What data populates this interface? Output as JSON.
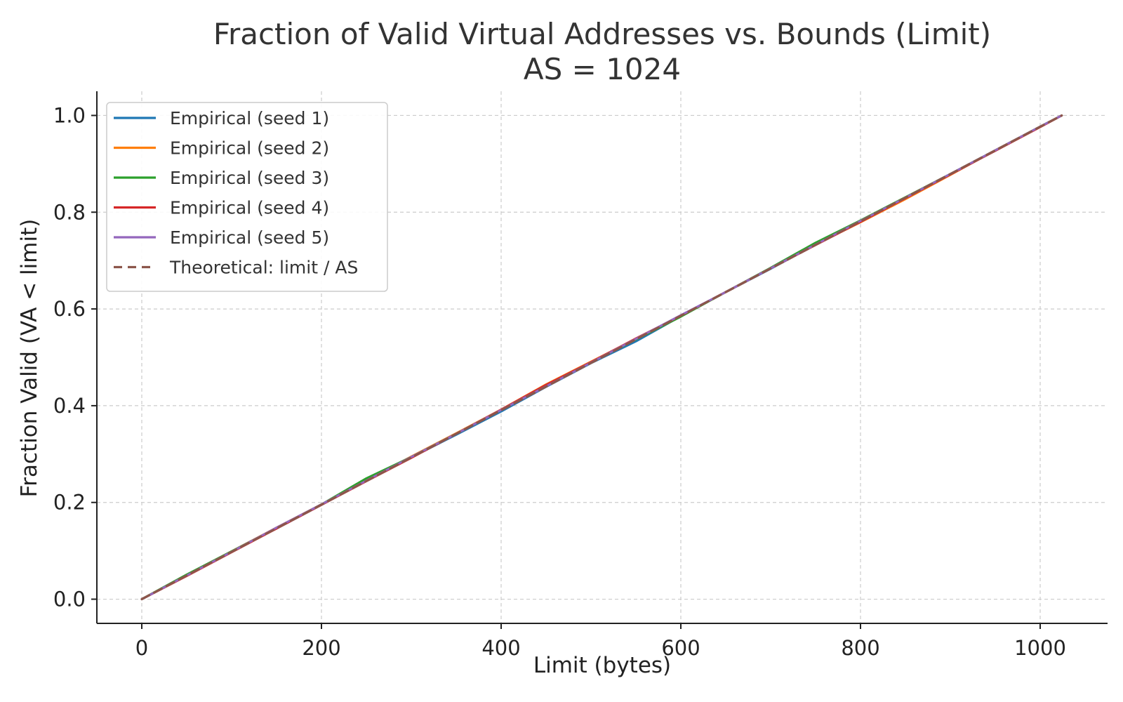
{
  "chart_data": {
    "type": "line",
    "title": "Fraction of Valid Virtual Addresses vs. Bounds (Limit)",
    "subtitle": "AS = 1024",
    "xlabel": "Limit (bytes)",
    "ylabel": "Fraction Valid (VA < limit)",
    "xlim": [
      -50,
      1075
    ],
    "ylim": [
      -0.05,
      1.05
    ],
    "xticks": [
      0,
      200,
      400,
      600,
      800,
      1000
    ],
    "xtick_labels": [
      "0",
      "200",
      "400",
      "600",
      "800",
      "1000"
    ],
    "yticks": [
      0.0,
      0.2,
      0.4,
      0.6,
      0.8,
      1.0
    ],
    "ytick_labels": [
      "0.0",
      "0.2",
      "0.4",
      "0.6",
      "0.8",
      "1.0"
    ],
    "grid": true,
    "legend_position": "top-left",
    "series": [
      {
        "name": "Empirical (seed 1)",
        "color": "#1f77b4",
        "style": "solid",
        "x": [
          0,
          50,
          100,
          150,
          200,
          250,
          300,
          350,
          400,
          450,
          500,
          550,
          600,
          650,
          700,
          750,
          800,
          850,
          900,
          950,
          1000,
          1024
        ],
        "y": [
          0.0,
          0.049,
          0.098,
          0.146,
          0.195,
          0.246,
          0.293,
          0.34,
          0.388,
          0.439,
          0.488,
          0.533,
          0.585,
          0.635,
          0.683,
          0.733,
          0.781,
          0.83,
          0.879,
          0.927,
          0.977,
          1.0
        ]
      },
      {
        "name": "Empirical (seed 2)",
        "color": "#ff7f0e",
        "style": "solid",
        "x": [
          0,
          50,
          100,
          150,
          200,
          250,
          300,
          350,
          400,
          450,
          500,
          550,
          600,
          650,
          700,
          750,
          800,
          850,
          900,
          950,
          1000,
          1024
        ],
        "y": [
          0.0,
          0.05,
          0.099,
          0.148,
          0.196,
          0.245,
          0.295,
          0.343,
          0.392,
          0.444,
          0.491,
          0.538,
          0.586,
          0.635,
          0.684,
          0.733,
          0.779,
          0.827,
          0.877,
          0.928,
          0.977,
          1.0
        ]
      },
      {
        "name": "Empirical (seed 3)",
        "color": "#2ca02c",
        "style": "solid",
        "x": [
          0,
          50,
          100,
          150,
          200,
          250,
          300,
          350,
          400,
          450,
          500,
          550,
          600,
          650,
          700,
          750,
          800,
          850,
          900,
          950,
          1000,
          1024
        ],
        "y": [
          0.0,
          0.051,
          0.099,
          0.147,
          0.196,
          0.25,
          0.294,
          0.342,
          0.391,
          0.44,
          0.489,
          0.537,
          0.584,
          0.635,
          0.685,
          0.737,
          0.783,
          0.831,
          0.879,
          0.928,
          0.977,
          1.0
        ]
      },
      {
        "name": "Empirical (seed 4)",
        "color": "#d62728",
        "style": "solid",
        "x": [
          0,
          50,
          100,
          150,
          200,
          250,
          300,
          350,
          400,
          450,
          500,
          550,
          600,
          650,
          700,
          750,
          800,
          850,
          900,
          950,
          1000,
          1024
        ],
        "y": [
          0.0,
          0.048,
          0.097,
          0.146,
          0.195,
          0.244,
          0.292,
          0.342,
          0.392,
          0.443,
          0.49,
          0.539,
          0.586,
          0.635,
          0.684,
          0.732,
          0.78,
          0.829,
          0.878,
          0.927,
          0.976,
          1.0
        ]
      },
      {
        "name": "Empirical (seed 5)",
        "color": "#9467bd",
        "style": "solid",
        "x": [
          0,
          50,
          100,
          150,
          200,
          250,
          300,
          350,
          400,
          450,
          500,
          550,
          600,
          650,
          700,
          750,
          800,
          850,
          900,
          950,
          1000,
          1024
        ],
        "y": [
          0.0,
          0.049,
          0.098,
          0.148,
          0.196,
          0.245,
          0.294,
          0.342,
          0.391,
          0.44,
          0.489,
          0.538,
          0.587,
          0.635,
          0.684,
          0.733,
          0.782,
          0.83,
          0.879,
          0.928,
          0.977,
          1.0
        ]
      },
      {
        "name": "Theoretical: limit / AS",
        "color": "#8c564b",
        "style": "dashed",
        "x": [
          0,
          1024
        ],
        "y": [
          0.0,
          1.0
        ]
      }
    ]
  }
}
